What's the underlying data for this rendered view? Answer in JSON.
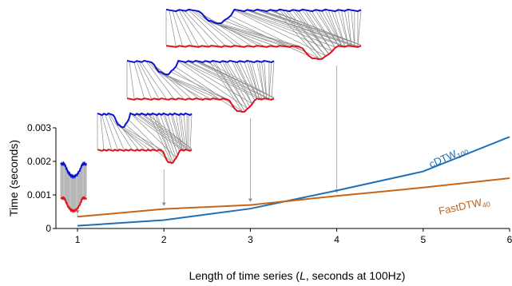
{
  "chart_data": {
    "type": "line",
    "xlabel": "Length of time series (L, seconds at 100Hz)",
    "xlabel_parts": [
      "Length of time series (",
      "L",
      ", seconds at 100Hz)"
    ],
    "ylabel": "Time (seconds)",
    "xlim": [
      0.75,
      6
    ],
    "ylim": [
      0,
      0.003
    ],
    "xticks": [
      "1",
      "2",
      "3",
      "4",
      "5",
      "6"
    ],
    "yticks": [
      "0",
      "0.001",
      "0.002",
      "0.003"
    ],
    "grid": false,
    "x": [
      1,
      2,
      3,
      4,
      5,
      6
    ],
    "series": [
      {
        "name": "cDTW100",
        "label_main": "cDTW",
        "label_sub": "100",
        "color": "#1f6fb4",
        "values": [
          8e-05,
          0.00025,
          0.00059,
          0.00113,
          0.0017,
          0.00273
        ]
      },
      {
        "name": "FastDTW40",
        "label_main": "FastDTW",
        "label_sub": "40",
        "color": "#c5651a",
        "values": [
          0.00035,
          0.00058,
          0.0007,
          0.00097,
          0.00122,
          0.0015
        ]
      }
    ],
    "insets": [
      {
        "x": 1,
        "align_lines": 28,
        "upper_color": "#0b14c8",
        "lower_color": "#e1111a"
      },
      {
        "x": 2,
        "align_lines": 36,
        "upper_color": "#0b14c8",
        "lower_color": "#e1111a"
      },
      {
        "x": 3,
        "align_lines": 48,
        "upper_color": "#0b14c8",
        "lower_color": "#e1111a"
      },
      {
        "x": 4,
        "align_lines": 60,
        "upper_color": "#0b14c8",
        "lower_color": "#e1111a"
      }
    ]
  }
}
